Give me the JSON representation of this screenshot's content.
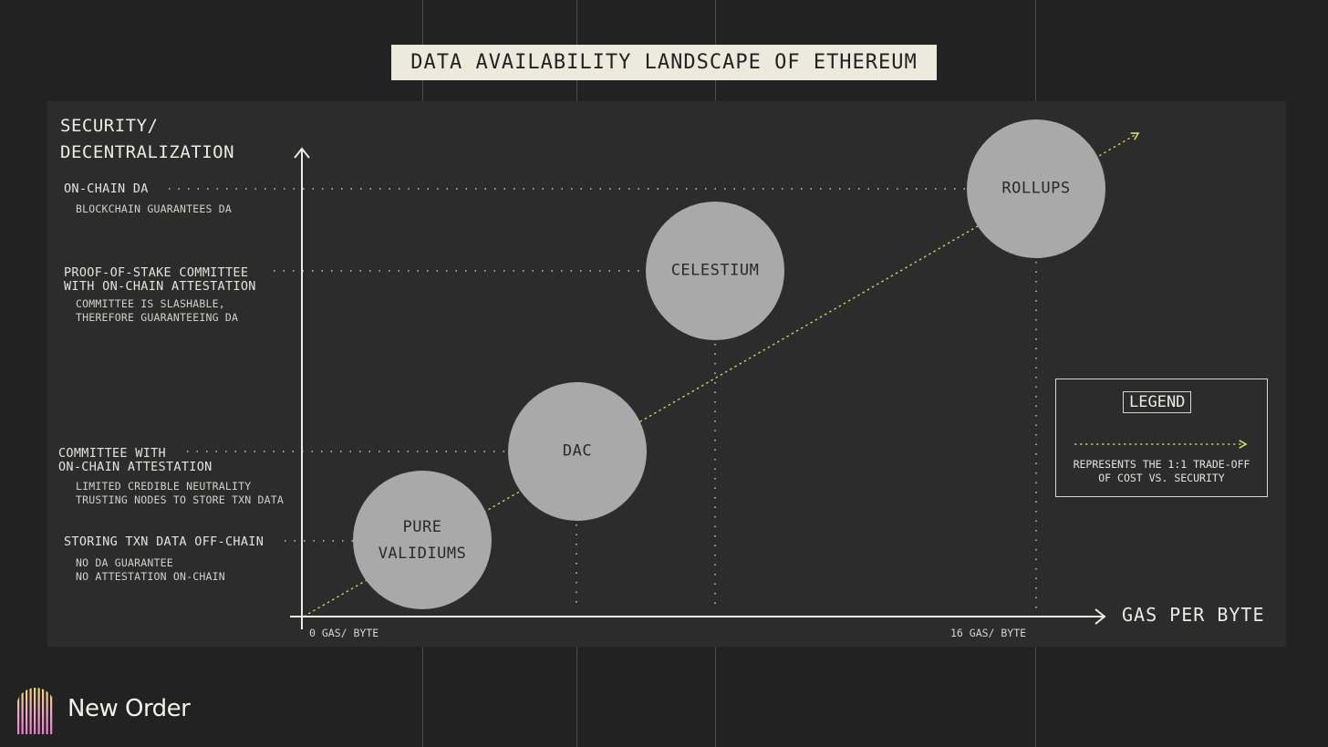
{
  "title": "DATA AVAILABILITY LANDSCAPE OF ETHEREUM",
  "y_axis_label": "SECURITY/ DECENTRALIZATION",
  "x_axis_label": "GAS PER BYTE",
  "x_ticks": {
    "min": "0 GAS/ BYTE",
    "max": "16 GAS/ BYTE"
  },
  "levels": [
    {
      "label": "ON-CHAIN DA",
      "desc": "BLOCKCHAIN GUARANTEES DA"
    },
    {
      "label": "PROOF-OF-STAKE COMMITTEE\nWITH ON-CHAIN ATTESTATION",
      "desc": "COMMITTEE IS SLASHABLE,\nTHEREFORE GUARANTEEING DA"
    },
    {
      "label": "COMMITTEE WITH\nON-CHAIN ATTESTATION",
      "desc": "LIMITED CREDIBLE NEUTRALITY\nTRUSTING NODES TO STORE TXN DATA"
    },
    {
      "label": "STORING TXN DATA OFF-CHAIN",
      "desc": "NO DA GUARANTEE\nNO ATTESTATION ON-CHAIN"
    }
  ],
  "nodes": [
    {
      "label": "PURE\nVALIDIUMS",
      "level": 3
    },
    {
      "label": "DAC",
      "level": 2
    },
    {
      "label": "CELESTIUM",
      "level": 1
    },
    {
      "label": "ROLLUPS",
      "level": 0
    }
  ],
  "legend": {
    "title": "LEGEND",
    "description": "REPRESENTS THE 1:1 TRADE-OFF\nOF COST VS. SECURITY"
  },
  "brand": {
    "name": "New Order"
  },
  "colors": {
    "background": "#222222",
    "panel": "#2c2c2c",
    "circle": "#a9a9a9",
    "trend": "#d9dc6a",
    "title_bg": "#ece9dd",
    "logo_pink": "#f08ad0",
    "logo_yellow": "#f4dc6a"
  }
}
